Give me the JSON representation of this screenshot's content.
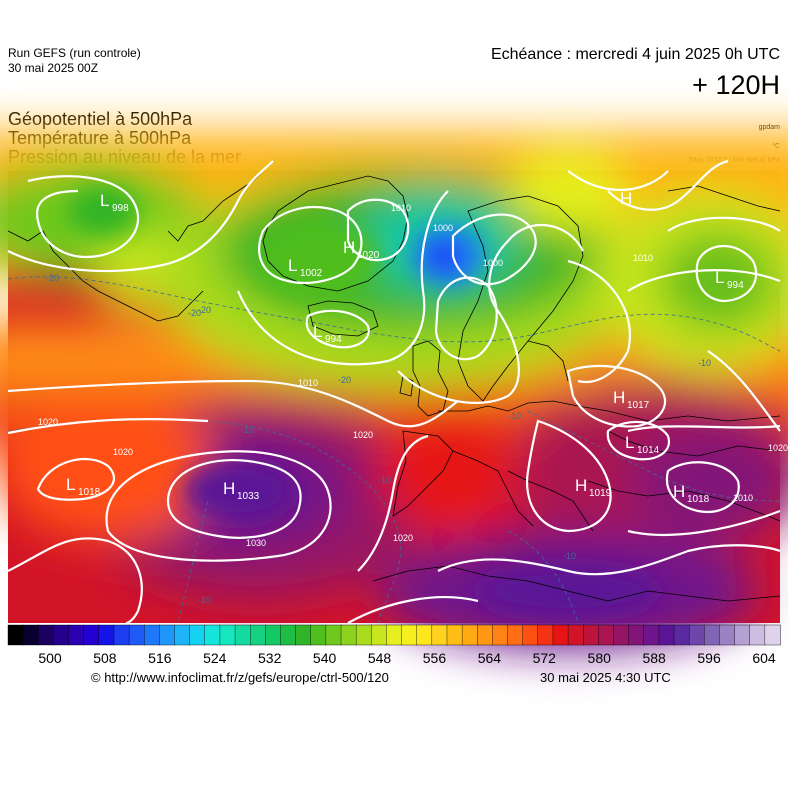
{
  "header": {
    "run_title": "Run GEFS (run controle)",
    "run_date": "30 mai 2025 00Z",
    "echeance": "Echéance : mercredi 4 juin 2025 0h UTC",
    "lead_time": "+ 120H"
  },
  "parameters": [
    "Géopotentiel à 500hPa",
    "Température à 500hPa",
    "Pression au niveau de la mer"
  ],
  "units": {
    "geopotential": "gpdam",
    "temperature": "°C",
    "pressure": "[Max 1032.7 | Min 986.6] hPa"
  },
  "pressure_centers": [
    {
      "type": "L",
      "value": "998"
    },
    {
      "type": "H",
      "value": "1020"
    },
    {
      "type": "L",
      "value": "1002"
    },
    {
      "type": "L",
      "value": "994"
    },
    {
      "type": "L",
      "value": "994"
    },
    {
      "type": "H",
      "value": ""
    },
    {
      "type": "H",
      "value": "1017"
    },
    {
      "type": "L",
      "value": "1014"
    },
    {
      "type": "H",
      "value": "1033"
    },
    {
      "type": "L",
      "value": "1018"
    },
    {
      "type": "H",
      "value": "1019"
    },
    {
      "type": "H",
      "value": "1018"
    }
  ],
  "isobar_labels": [
    "1020",
    "1010",
    "1000",
    "1000",
    "1010",
    "1020",
    "1020",
    "1030",
    "1020",
    "1010",
    "1010",
    "1020"
  ],
  "temperature_labels": [
    "-20",
    "-20",
    "-20",
    "-20",
    "-10",
    "-10",
    "-10",
    "-10",
    "-10",
    "-10"
  ],
  "colorbar": {
    "ticks": [
      "500",
      "508",
      "516",
      "524",
      "532",
      "540",
      "548",
      "556",
      "564",
      "572",
      "580",
      "588",
      "596",
      "604"
    ],
    "colors": [
      "#000000",
      "#0a0030",
      "#1c0060",
      "#24008c",
      "#2a00b0",
      "#2400d2",
      "#1414e8",
      "#1e3cf0",
      "#1e5af5",
      "#1e78fa",
      "#1e96fa",
      "#1eb4fa",
      "#14d2f0",
      "#14e6dc",
      "#14e6be",
      "#14dca0",
      "#14d282",
      "#14c864",
      "#1ebe46",
      "#32b428",
      "#50be1e",
      "#6ec81e",
      "#8cd21e",
      "#aadc1e",
      "#c8e61e",
      "#e6f01e",
      "#f5f01e",
      "#ffe61e",
      "#ffd21e",
      "#ffbe14",
      "#ffaa14",
      "#ff9614",
      "#ff8214",
      "#ff6e14",
      "#ff5014",
      "#f53214",
      "#e61414",
      "#d21428",
      "#be143c",
      "#aa1450",
      "#961464",
      "#821478",
      "#6e148c",
      "#5a1496",
      "#5a28a0",
      "#6e46aa",
      "#8264b4",
      "#9a82c3",
      "#b4a0d2",
      "#cdbee1",
      "#e1d2eb"
    ]
  },
  "footer": {
    "url": "© http://www.infoclimat.fr/z/gefs/europe/ctrl-500/120",
    "timestamp": "30 mai 2025  4:30 UTC"
  }
}
